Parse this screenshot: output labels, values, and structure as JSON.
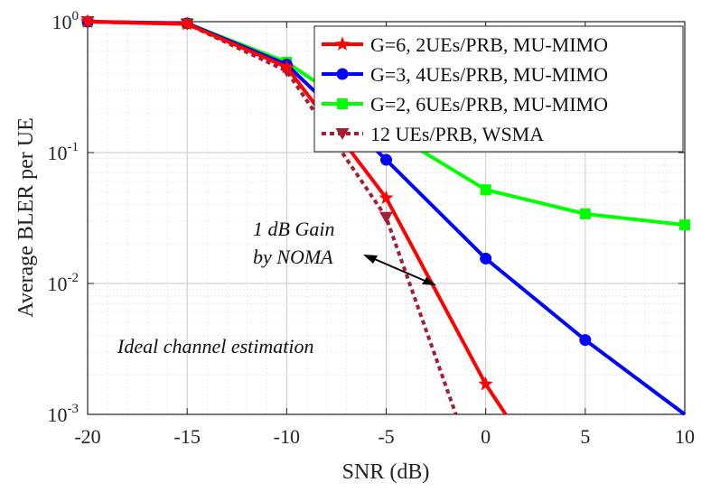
{
  "chart_data": {
    "type": "line",
    "xlabel": "SNR (dB)",
    "ylabel": "Average BLER per UE",
    "xlim": [
      -20,
      10
    ],
    "ylim": [
      0.001,
      1
    ],
    "yscale": "log",
    "grid": true,
    "legend_position": "top-right",
    "x_ticks": [
      "-20",
      "-15",
      "-10",
      "-5",
      "0",
      "5",
      "10"
    ],
    "y_ticks": [
      {
        "base": "10",
        "exp": "0"
      },
      {
        "base": "10",
        "exp": "-1"
      },
      {
        "base": "10",
        "exp": "-2"
      },
      {
        "base": "10",
        "exp": "-3"
      }
    ],
    "series": [
      {
        "name": "G=6, 2UEs/PRB, MU-MIMO",
        "color": "#ff0000",
        "marker": "star",
        "dash": "solid",
        "x": [
          -20,
          -15,
          -10,
          -5,
          0,
          1
        ],
        "y": [
          1.0,
          0.96,
          0.45,
          0.045,
          0.0017,
          0.001
        ]
      },
      {
        "name": "G=3, 4UEs/PRB, MU-MIMO",
        "color": "#0000ff",
        "marker": "circle",
        "dash": "solid",
        "x": [
          -20,
          -15,
          -10,
          -5,
          0,
          5,
          10
        ],
        "y": [
          1.0,
          0.97,
          0.47,
          0.088,
          0.0155,
          0.0037,
          0.001
        ]
      },
      {
        "name": "G=2, 6UEs/PRB, MU-MIMO",
        "color": "#00ff00",
        "marker": "square",
        "dash": "solid",
        "x": [
          -20,
          -15,
          -10,
          -5,
          0,
          5,
          10
        ],
        "y": [
          1.0,
          0.97,
          0.49,
          0.15,
          0.052,
          0.034,
          0.028
        ]
      },
      {
        "name": "12 UEs/PRB, WSMA",
        "color": "#a31f34",
        "marker": "triangle-down",
        "dash": "dotted",
        "x": [
          -20,
          -15,
          -10,
          -5,
          -1.5
        ],
        "y": [
          1.0,
          0.96,
          0.42,
          0.032,
          0.001
        ]
      }
    ],
    "annotations": [
      {
        "text_line1": "1 dB Gain",
        "text_line2": "by NOMA"
      },
      {
        "text": "Ideal channel estimation"
      }
    ]
  }
}
